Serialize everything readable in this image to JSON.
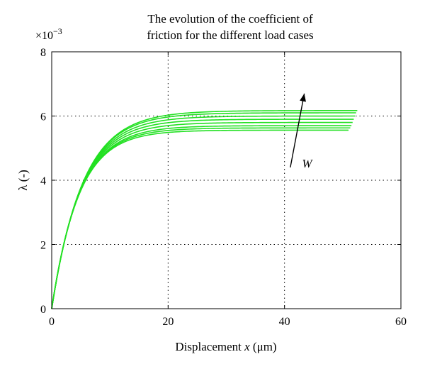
{
  "chart_data": {
    "type": "line",
    "title_lines": [
      "The evolution of the coefficient of",
      "friction for the different load cases"
    ],
    "xlabel": {
      "prefix": "Displacement ",
      "var": "x",
      "unit": " (μm)"
    },
    "ylabel": "λ (-)",
    "y_multiplier": {
      "base": "×10",
      "exponent": "−3"
    },
    "xlim": [
      0,
      60
    ],
    "ylim": [
      0,
      8
    ],
    "xticks": [
      0,
      20,
      40,
      60
    ],
    "yticks": [
      0,
      2,
      4,
      6,
      8
    ],
    "grid": true,
    "series_model": "y = A * (1 - exp(-x / tau))",
    "series": [
      {
        "x_end": 51.0,
        "A": 5.56,
        "tau": 4.6
      },
      {
        "x_end": 51.3,
        "A": 5.63,
        "tau": 4.7
      },
      {
        "x_end": 51.5,
        "A": 5.7,
        "tau": 4.8
      },
      {
        "x_end": 51.7,
        "A": 5.8,
        "tau": 4.9
      },
      {
        "x_end": 51.9,
        "A": 5.9,
        "tau": 5.0
      },
      {
        "x_end": 52.1,
        "A": 6.0,
        "tau": 5.1
      },
      {
        "x_end": 52.3,
        "A": 6.1,
        "tau": 5.2
      },
      {
        "x_end": 52.5,
        "A": 6.17,
        "tau": 5.3
      }
    ],
    "annotation": {
      "text": "W",
      "arrow_from": [
        41,
        4.4
      ],
      "arrow_to": [
        43.4,
        6.7
      ],
      "label_at": [
        43,
        4.4
      ]
    },
    "line_color": "#22e022"
  }
}
